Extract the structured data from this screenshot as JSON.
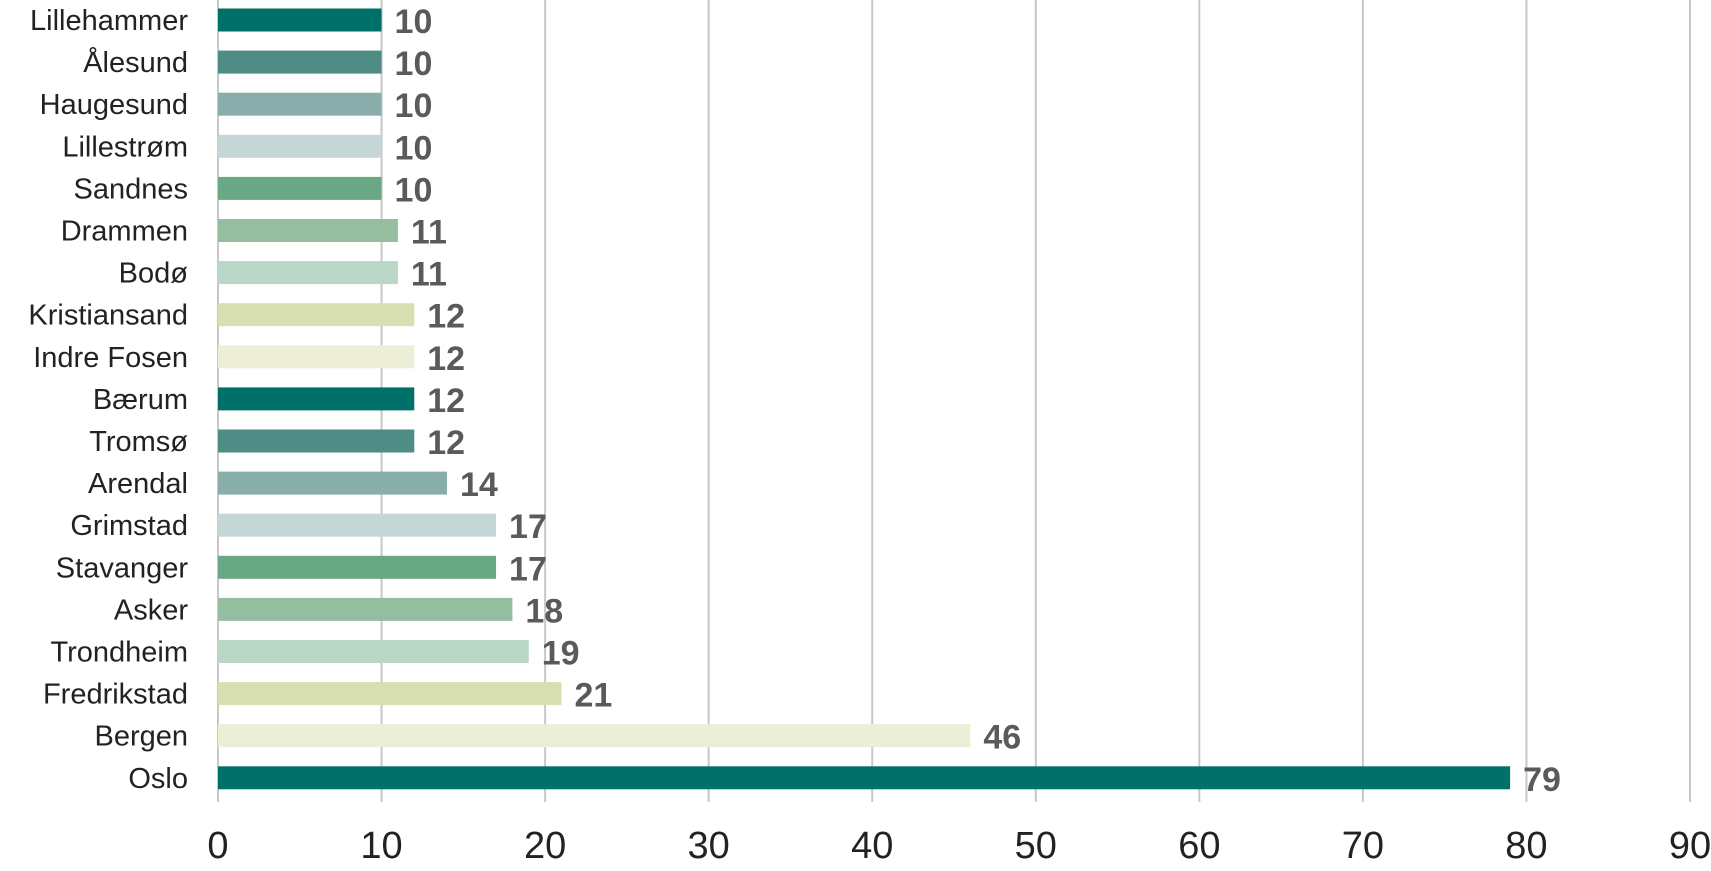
{
  "chart_data": {
    "type": "bar",
    "orientation": "horizontal",
    "title": "",
    "xlabel": "",
    "ylabel": "",
    "xlim": [
      0,
      90
    ],
    "xticks": [
      0,
      10,
      20,
      30,
      40,
      50,
      60,
      70,
      80,
      90
    ],
    "grid": "vertical",
    "legend": "none",
    "categories": [
      "Lillehammer",
      "Ålesund",
      "Haugesund",
      "Lillestrøm",
      "Sandnes",
      "Drammen",
      "Bodø",
      "Kristiansand",
      "Indre Fosen",
      "Bærum",
      "Tromsø",
      "Arendal",
      "Grimstad",
      "Stavanger",
      "Asker",
      "Trondheim",
      "Fredrikstad",
      "Bergen",
      "Oslo"
    ],
    "values": [
      10,
      10,
      10,
      10,
      10,
      11,
      11,
      12,
      12,
      12,
      12,
      14,
      17,
      17,
      18,
      19,
      21,
      46,
      79
    ],
    "colors": [
      "#00706a",
      "#4f8c86",
      "#89adaa",
      "#c4d6d5",
      "#68a884",
      "#95bea1",
      "#bad6c6",
      "#d8dfb1",
      "#eceed8",
      "#00706a",
      "#4f8c86",
      "#89adaa",
      "#c4d6d5",
      "#68a884",
      "#95bea1",
      "#bad6c6",
      "#d8dfb1",
      "#eceed8",
      "#00706a"
    ],
    "label_color": "#5a5a5a",
    "grid_color": "#c8c8c8"
  }
}
